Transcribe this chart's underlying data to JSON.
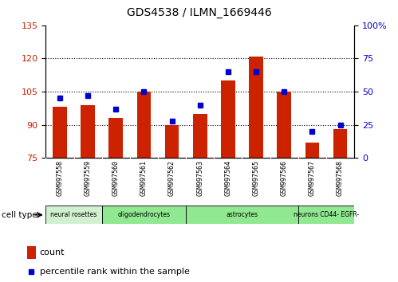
{
  "title": "GDS4538 / ILMN_1669446",
  "samples": [
    "GSM997558",
    "GSM997559",
    "GSM997560",
    "GSM997561",
    "GSM997562",
    "GSM997563",
    "GSM997564",
    "GSM997565",
    "GSM997566",
    "GSM997567",
    "GSM997568"
  ],
  "count_values": [
    98,
    99,
    93,
    105,
    90,
    95,
    110,
    121,
    105,
    82,
    88
  ],
  "percentile_values": [
    45,
    47,
    37,
    50,
    28,
    40,
    65,
    65,
    50,
    20,
    25
  ],
  "ylim_left": [
    75,
    135
  ],
  "ylim_right": [
    0,
    100
  ],
  "yticks_left": [
    75,
    90,
    105,
    120,
    135
  ],
  "yticks_right": [
    0,
    25,
    50,
    75,
    100
  ],
  "bar_color": "#cc2200",
  "marker_color": "#0000cc",
  "plot_bg": "#ffffff",
  "xticklabel_bg": "#d8d8d8",
  "group_spans": [
    {
      "start": 0,
      "end": 1,
      "label": "neural rosettes",
      "color": "#d0f0d0"
    },
    {
      "start": 2,
      "end": 4,
      "label": "oligodendrocytes",
      "color": "#90e890"
    },
    {
      "start": 5,
      "end": 8,
      "label": "astrocytes",
      "color": "#90e890"
    },
    {
      "start": 9,
      "end": 10,
      "label": "neurons CD44- EGFR-",
      "color": "#90e890"
    }
  ]
}
